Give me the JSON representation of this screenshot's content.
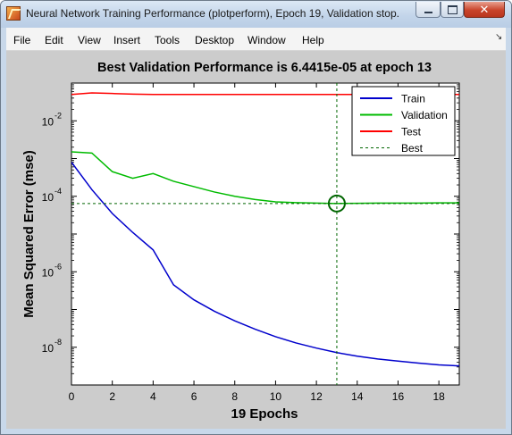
{
  "window": {
    "title": "Neural Network Training Performance (plotperform), Epoch 19, Validation stop."
  },
  "menu": {
    "items": [
      "File",
      "Edit",
      "View",
      "Insert",
      "Tools",
      "Desktop",
      "Window",
      "Help"
    ]
  },
  "icons": {
    "app": "matlab-icon",
    "minimize": "minimize-icon",
    "maximize": "maximize-icon",
    "close": "close-icon",
    "menu_arrow": "menu-arrow-icon"
  },
  "chart_data": {
    "type": "line",
    "title": "Best Validation Performance is 6.4415e-05 at epoch 13",
    "xlabel": "19 Epochs",
    "ylabel": "Mean Squared Error  (mse)",
    "xlim": [
      0,
      19
    ],
    "ylim": [
      1e-09,
      0.1
    ],
    "yscale": "log",
    "grid": false,
    "legend_position": "top-right",
    "x_ticks": [
      0,
      2,
      4,
      6,
      8,
      10,
      12,
      14,
      16,
      18
    ],
    "y_ticks": [
      {
        "base": "10",
        "exp": "-8",
        "value": 1e-08
      },
      {
        "base": "10",
        "exp": "-6",
        "value": 1e-06
      },
      {
        "base": "10",
        "exp": "-4",
        "value": 0.0001
      },
      {
        "base": "10",
        "exp": "-2",
        "value": 0.01
      }
    ],
    "x": [
      0,
      1,
      2,
      3,
      4,
      5,
      6,
      7,
      8,
      9,
      10,
      11,
      12,
      13,
      14,
      15,
      16,
      17,
      18,
      19
    ],
    "series": [
      {
        "name": "Train",
        "color": "#0000cc",
        "style": "solid",
        "values": [
          0.0008,
          0.00015,
          3.5e-05,
          1.1e-05,
          3.8e-06,
          4.5e-07,
          1.8e-07,
          9e-08,
          5e-08,
          3e-08,
          1.9e-08,
          1.3e-08,
          9.5e-09,
          7.2e-09,
          5.8e-09,
          4.9e-09,
          4.3e-09,
          3.8e-09,
          3.4e-09,
          3.2e-09
        ]
      },
      {
        "name": "Validation",
        "color": "#00bb00",
        "style": "solid",
        "values": [
          0.0015,
          0.0014,
          0.00045,
          0.0003,
          0.0004,
          0.00025,
          0.00018,
          0.00013,
          0.0001,
          8.2e-05,
          7.1e-05,
          6.8e-05,
          6.6e-05,
          6.4415e-05,
          6.5e-05,
          6.6e-05,
          6.6e-05,
          6.6e-05,
          6.7e-05,
          6.7e-05
        ]
      },
      {
        "name": "Test",
        "color": "#ff0000",
        "style": "solid",
        "values": [
          0.05,
          0.055,
          0.053,
          0.051,
          0.05,
          0.05,
          0.05,
          0.05,
          0.05,
          0.05,
          0.05,
          0.05,
          0.05,
          0.05,
          0.05,
          0.05,
          0.05,
          0.05,
          0.05,
          0.05
        ]
      }
    ],
    "best": {
      "name": "Best",
      "epoch": 13,
      "value": 6.4415e-05,
      "color": "#006600",
      "style": "dashed"
    }
  }
}
